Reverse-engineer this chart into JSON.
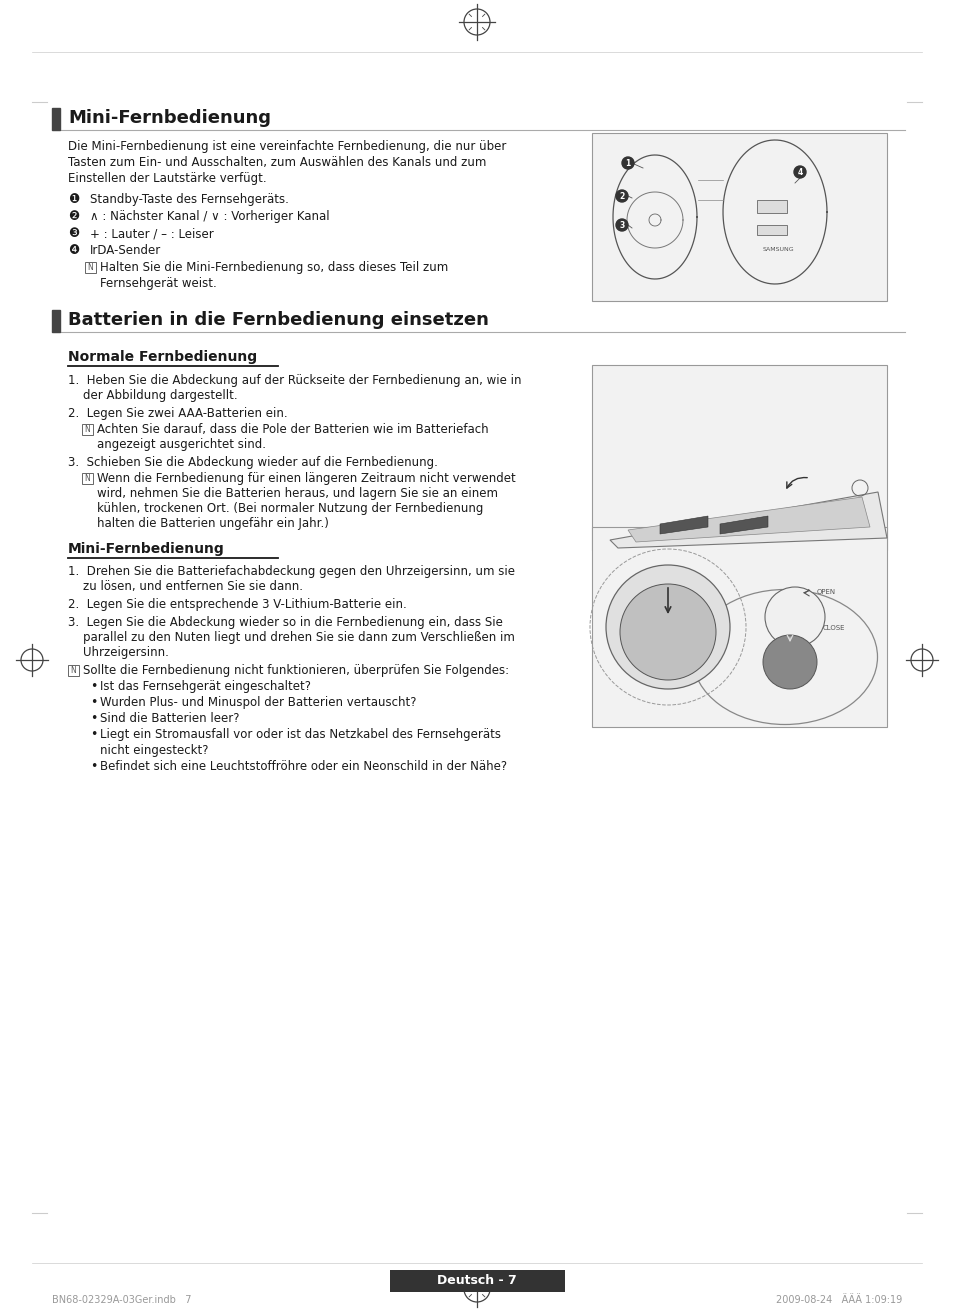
{
  "page_bg": "#ffffff",
  "border_color": "#cccccc",
  "text_color": "#1a1a1a",
  "header_bar_color": "#555555",
  "section1_title": "Mini-Fernbedienung",
  "section2_title": "Batterien in die Fernbedienung einsetzen",
  "subsection1_title": "Normale Fernbedienung",
  "subsection2_title": "Mini-Fernbedienung",
  "page_label": "Deutsch - 7",
  "footer_left": "BN68-02329A-03Ger.indb   7",
  "footer_right": "2009-08-24   ÄÄÄ 1:09:19",
  "section1_intro": "Die Mini-Fernbedienung ist eine vereinfachte Fernbedienung, die nur über\nTasten zum Ein- und Ausschalten, zum Auswählen des Kanals und zum\nEinstellen der Lautstärke verfügt.",
  "bullet1_num": "❶",
  "bullet1_text": "Standby-Taste des Fernsehgeräts.",
  "bullet2_num": "❷",
  "bullet2_text": "∧ : Nächster Kanal / ∨ : Vorheriger Kanal",
  "bullet3_num": "❸",
  "bullet3_text": "+ : Lauter / – : Leiser",
  "bullet4_num": "❹",
  "bullet4_text": "IrDA-Sender",
  "note1_line1": "Halten Sie die Mini-Fernbedienung so, dass dieses Teil zum",
  "note1_line2": "Fernsehgerät weist.",
  "norm_step1a": "1.  Heben Sie die Abdeckung auf der Rückseite der Fernbedienung an, wie in",
  "norm_step1b": "    der Abbildung dargestellt.",
  "norm_step2": "2.  Legen Sie zwei AAA-Batterien ein.",
  "norm_note2a": "Achten Sie darauf, dass die Pole der Batterien wie im Batteriefach",
  "norm_note2b": "angezeigt ausgerichtet sind.",
  "norm_step3": "3.  Schieben Sie die Abdeckung wieder auf die Fernbedienung.",
  "norm_note3a": "Wenn die Fernbedienung für einen längeren Zeitraum nicht verwendet",
  "norm_note3b": "wird, nehmen Sie die Batterien heraus, und lagern Sie sie an einem",
  "norm_note3c": "kühlen, trockenen Ort. (Bei normaler Nutzung der Fernbedienung",
  "norm_note3d": "halten die Batterien ungefähr ein Jahr.)",
  "mini_step1a": "1.  Drehen Sie die Batteriefachabdeckung gegen den Uhrzeigersinn, um sie",
  "mini_step1b": "    zu lösen, und entfernen Sie sie dann.",
  "mini_step2": "2.  Legen Sie die entsprechende 3 V-Lithium-Batterie ein.",
  "mini_step3a": "3.  Legen Sie die Abdeckung wieder so in die Fernbedienung ein, dass Sie",
  "mini_step3b": "    parallel zu den Nuten liegt und drehen Sie sie dann zum Verschließen im",
  "mini_step3c": "    Uhrzeigersinn.",
  "mini_note": "Sollte die Fernbedienung nicht funktionieren, überprüfen Sie Folgendes:",
  "mini_b1": "Ist das Fernsehgerät eingeschaltet?",
  "mini_b2": "Wurden Plus- und Minuspol der Batterien vertauscht?",
  "mini_b3": "Sind die Batterien leer?",
  "mini_b4a": "Liegt ein Stromausfall vor oder ist das Netzkabel des Fernsehgeräts",
  "mini_b4b": "nicht eingesteckt?",
  "mini_b5": "Befindet sich eine Leuchtstoffröhre oder ein Neonschild in der Nähe?"
}
